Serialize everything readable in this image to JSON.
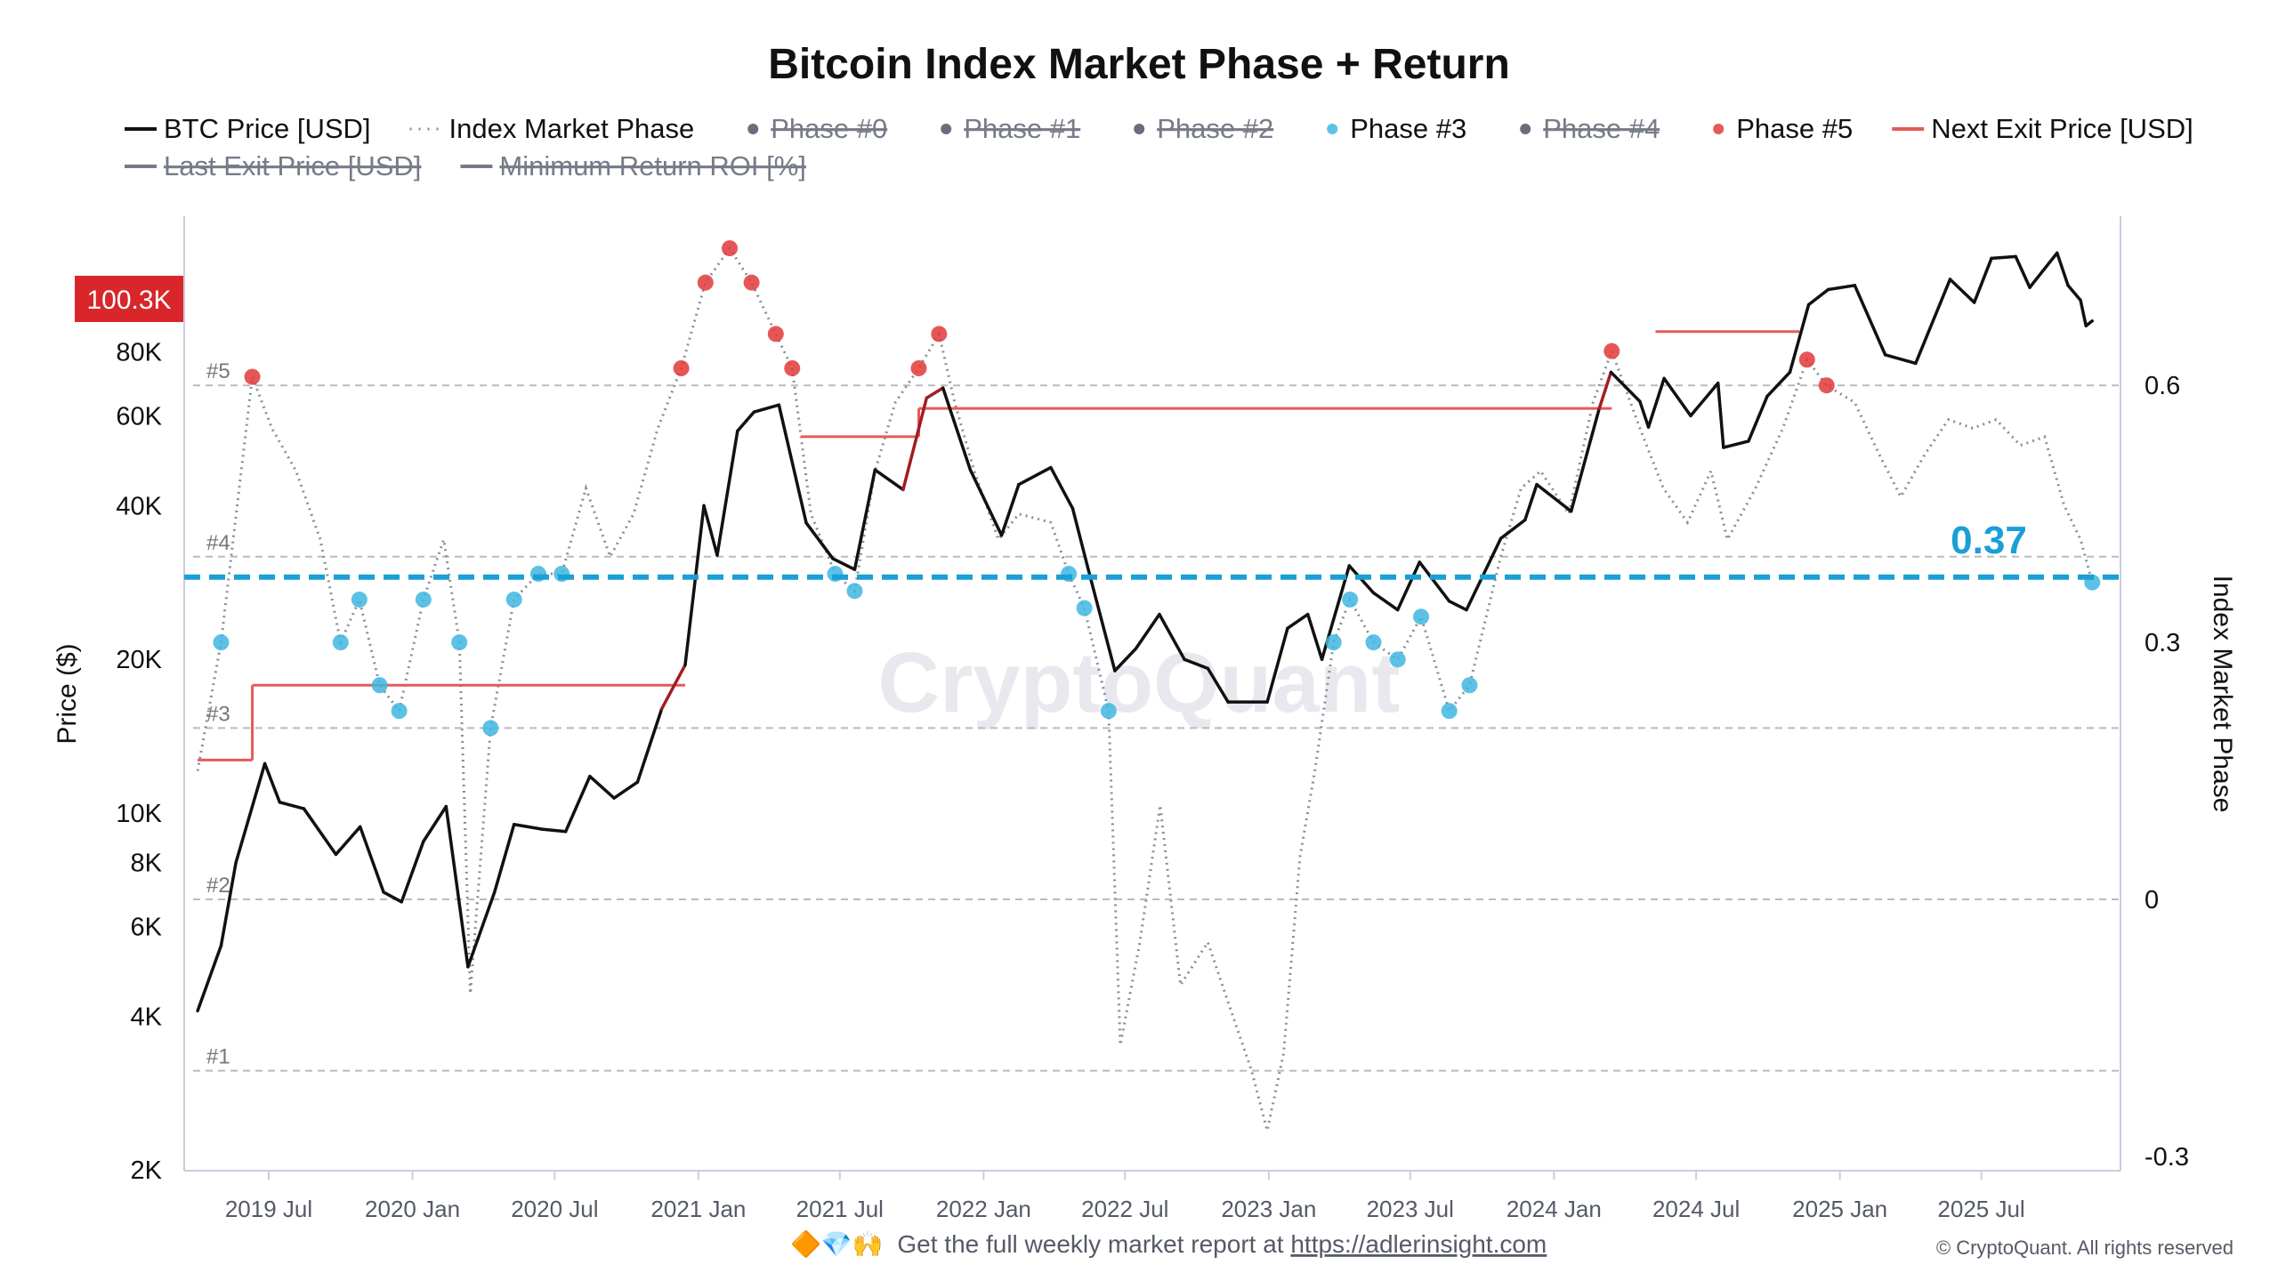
{
  "chart_data": {
    "type": "line",
    "title": "Bitcoin Index Market Phase + Return",
    "ylabel_left": "Price ($)",
    "ylabel_right": "Index Market Phase",
    "y_left_scale": "log",
    "y_left_range": [
      2000,
      147000
    ],
    "y_right_range": [
      -0.33,
      0.78
    ],
    "x_range": [
      "2019-04-01",
      "2025-11-20"
    ],
    "left_ticks": [
      {
        "v": 2000,
        "label": "2K"
      },
      {
        "v": 4000,
        "label": "4K"
      },
      {
        "v": 6000,
        "label": "6K"
      },
      {
        "v": 8000,
        "label": "8K"
      },
      {
        "v": 10000,
        "label": "10K"
      },
      {
        "v": 20000,
        "label": "20K"
      },
      {
        "v": 40000,
        "label": "40K"
      },
      {
        "v": 60000,
        "label": "60K"
      },
      {
        "v": 80000,
        "label": "80K"
      }
    ],
    "right_ticks": [
      {
        "v": 0.6,
        "label": "0.6"
      },
      {
        "v": 0.3,
        "label": "0.3"
      },
      {
        "v": 0,
        "label": "0"
      },
      {
        "v": -0.3,
        "label": "-0.3"
      }
    ],
    "x_ticks": [
      {
        "d": "2019-07-01",
        "label": "2019 Jul"
      },
      {
        "d": "2020-01-01",
        "label": "2020 Jan"
      },
      {
        "d": "2020-07-01",
        "label": "2020 Jul"
      },
      {
        "d": "2021-01-01",
        "label": "2021 Jan"
      },
      {
        "d": "2021-07-01",
        "label": "2021 Jul"
      },
      {
        "d": "2022-01-01",
        "label": "2022 Jan"
      },
      {
        "d": "2022-07-01",
        "label": "2022 Jul"
      },
      {
        "d": "2023-01-01",
        "label": "2023 Jan"
      },
      {
        "d": "2023-07-01",
        "label": "2023 Jul"
      },
      {
        "d": "2024-01-01",
        "label": "2024 Jan"
      },
      {
        "d": "2024-07-01",
        "label": "2024 Jul"
      },
      {
        "d": "2025-01-01",
        "label": "2025 Jan"
      },
      {
        "d": "2025-07-01",
        "label": "2025 Jul"
      }
    ],
    "phase_levels": [
      {
        "v": 0.6,
        "label": "#5"
      },
      {
        "v": 0.4,
        "label": "#4"
      },
      {
        "v": 0.2,
        "label": "#3"
      },
      {
        "v": 0,
        "label": "#2"
      },
      {
        "v": -0.2,
        "label": "#1"
      }
    ],
    "current_index": {
      "value": 0.37,
      "label": "0.37",
      "color": "#1a9fd6"
    },
    "price_tag": {
      "value": 100300,
      "label": "100.3K",
      "color": "#d8262b"
    },
    "legend": [
      {
        "name": "BTC Price [USD]",
        "style": "line",
        "color": "#111111",
        "visible": true
      },
      {
        "name": "Index Market Phase",
        "style": "dotted",
        "color": "#8a8d99",
        "visible": true
      },
      {
        "name": "Phase #0",
        "style": "dot",
        "color": "#6b6e7a",
        "visible": false
      },
      {
        "name": "Phase #1",
        "style": "dot",
        "color": "#6b6e7a",
        "visible": false
      },
      {
        "name": "Phase #2",
        "style": "dot",
        "color": "#6b6e7a",
        "visible": false
      },
      {
        "name": "Phase #3",
        "style": "dot",
        "color": "#5bc3e6",
        "visible": true
      },
      {
        "name": "Phase #4",
        "style": "dot",
        "color": "#6b6e7a",
        "visible": false
      },
      {
        "name": "Phase #5",
        "style": "dot",
        "color": "#e55a5a",
        "visible": true
      },
      {
        "name": "Next Exit Price [USD]",
        "style": "line",
        "color": "#e55a5a",
        "visible": true
      },
      {
        "name": "Last Exit Price [USD]",
        "style": "line",
        "color": "#777b88",
        "visible": false
      },
      {
        "name": "Minimum Return ROI [%]",
        "style": "line",
        "color": "#777b88",
        "visible": false
      }
    ],
    "series": [
      {
        "name": "BTC Price [USD]",
        "points": [
          [
            "2019-04-01",
            4100
          ],
          [
            "2019-05-01",
            5500
          ],
          [
            "2019-05-20",
            8000
          ],
          [
            "2019-06-26",
            12500
          ],
          [
            "2019-07-15",
            10500
          ],
          [
            "2019-08-15",
            10200
          ],
          [
            "2019-09-25",
            8300
          ],
          [
            "2019-10-26",
            9400
          ],
          [
            "2019-11-25",
            7000
          ],
          [
            "2019-12-18",
            6700
          ],
          [
            "2020-01-15",
            8800
          ],
          [
            "2020-02-13",
            10300
          ],
          [
            "2020-03-12",
            5000
          ],
          [
            "2020-04-15",
            7000
          ],
          [
            "2020-05-10",
            9500
          ],
          [
            "2020-06-15",
            9300
          ],
          [
            "2020-07-15",
            9200
          ],
          [
            "2020-08-15",
            11800
          ],
          [
            "2020-09-15",
            10700
          ],
          [
            "2020-10-15",
            11500
          ],
          [
            "2020-11-15",
            16000
          ],
          [
            "2020-12-15",
            19500
          ],
          [
            "2021-01-08",
            40000
          ],
          [
            "2021-01-25",
            32000
          ],
          [
            "2021-02-20",
            56000
          ],
          [
            "2021-03-13",
            61000
          ],
          [
            "2021-04-14",
            63000
          ],
          [
            "2021-05-19",
            37000
          ],
          [
            "2021-06-22",
            31500
          ],
          [
            "2021-07-20",
            30000
          ],
          [
            "2021-08-15",
            47000
          ],
          [
            "2021-09-20",
            43000
          ],
          [
            "2021-10-20",
            65000
          ],
          [
            "2021-11-10",
            68000
          ],
          [
            "2021-12-15",
            47000
          ],
          [
            "2022-01-24",
            35000
          ],
          [
            "2022-02-15",
            44000
          ],
          [
            "2022-03-28",
            47500
          ],
          [
            "2022-04-25",
            39500
          ],
          [
            "2022-05-15",
            30000
          ],
          [
            "2022-06-18",
            19000
          ],
          [
            "2022-07-15",
            21000
          ],
          [
            "2022-08-14",
            24500
          ],
          [
            "2022-09-15",
            20000
          ],
          [
            "2022-10-15",
            19200
          ],
          [
            "2022-11-10",
            16500
          ],
          [
            "2022-12-30",
            16500
          ],
          [
            "2023-01-25",
            23000
          ],
          [
            "2023-02-20",
            24500
          ],
          [
            "2023-03-10",
            20000
          ],
          [
            "2023-04-14",
            30500
          ],
          [
            "2023-05-15",
            27000
          ],
          [
            "2023-06-15",
            25000
          ],
          [
            "2023-07-13",
            31000
          ],
          [
            "2023-08-20",
            26000
          ],
          [
            "2023-09-11",
            25000
          ],
          [
            "2023-10-25",
            34500
          ],
          [
            "2023-11-25",
            37500
          ],
          [
            "2023-12-10",
            44000
          ],
          [
            "2024-01-23",
            39000
          ],
          [
            "2024-02-28",
            62000
          ],
          [
            "2024-03-14",
            73000
          ],
          [
            "2024-04-20",
            64000
          ],
          [
            "2024-05-01",
            57000
          ],
          [
            "2024-05-21",
            71000
          ],
          [
            "2024-06-24",
            60000
          ],
          [
            "2024-07-29",
            69500
          ],
          [
            "2024-08-05",
            52000
          ],
          [
            "2024-09-06",
            53500
          ],
          [
            "2024-09-30",
            65500
          ],
          [
            "2024-10-29",
            73000
          ],
          [
            "2024-11-22",
            99000
          ],
          [
            "2024-12-17",
            106000
          ],
          [
            "2025-01-20",
            108000
          ],
          [
            "2025-02-28",
            79000
          ],
          [
            "2025-04-08",
            76000
          ],
          [
            "2025-05-22",
            111000
          ],
          [
            "2025-06-22",
            100000
          ],
          [
            "2025-07-14",
            122000
          ],
          [
            "2025-08-14",
            123000
          ],
          [
            "2025-09-01",
            107000
          ],
          [
            "2025-10-06",
            125000
          ],
          [
            "2025-10-20",
            108000
          ],
          [
            "2025-11-05",
            101000
          ],
          [
            "2025-11-12",
            90000
          ],
          [
            "2025-11-20",
            92000
          ]
        ]
      },
      {
        "name": "Index Market Phase",
        "points": [
          [
            "2019-04-01",
            0.15
          ],
          [
            "2019-05-01",
            0.3
          ],
          [
            "2019-06-10",
            0.61
          ],
          [
            "2019-07-05",
            0.55
          ],
          [
            "2019-08-05",
            0.5
          ],
          [
            "2019-09-05",
            0.42
          ],
          [
            "2019-10-01",
            0.3
          ],
          [
            "2019-10-25",
            0.35
          ],
          [
            "2019-11-20",
            0.25
          ],
          [
            "2019-12-15",
            0.22
          ],
          [
            "2020-01-15",
            0.35
          ],
          [
            "2020-02-10",
            0.42
          ],
          [
            "2020-03-01",
            0.3
          ],
          [
            "2020-03-15",
            -0.11
          ],
          [
            "2020-04-10",
            0.2
          ],
          [
            "2020-05-10",
            0.35
          ],
          [
            "2020-06-10",
            0.38
          ],
          [
            "2020-07-10",
            0.38
          ],
          [
            "2020-08-10",
            0.48
          ],
          [
            "2020-09-10",
            0.4
          ],
          [
            "2020-10-10",
            0.45
          ],
          [
            "2020-11-10",
            0.55
          ],
          [
            "2020-12-10",
            0.62
          ],
          [
            "2021-01-10",
            0.72
          ],
          [
            "2021-02-10",
            0.76
          ],
          [
            "2021-03-10",
            0.72
          ],
          [
            "2021-04-10",
            0.66
          ],
          [
            "2021-05-01",
            0.62
          ],
          [
            "2021-05-25",
            0.45
          ],
          [
            "2021-06-25",
            0.38
          ],
          [
            "2021-07-20",
            0.36
          ],
          [
            "2021-08-15",
            0.5
          ],
          [
            "2021-09-10",
            0.58
          ],
          [
            "2021-10-10",
            0.62
          ],
          [
            "2021-11-05",
            0.66
          ],
          [
            "2021-11-25",
            0.58
          ],
          [
            "2021-12-20",
            0.5
          ],
          [
            "2022-01-20",
            0.42
          ],
          [
            "2022-02-15",
            0.45
          ],
          [
            "2022-03-28",
            0.44
          ],
          [
            "2022-04-20",
            0.38
          ],
          [
            "2022-05-10",
            0.34
          ],
          [
            "2022-06-10",
            0.22
          ],
          [
            "2022-06-25",
            -0.17
          ],
          [
            "2022-07-20",
            -0.05
          ],
          [
            "2022-08-15",
            0.11
          ],
          [
            "2022-09-10",
            -0.1
          ],
          [
            "2022-10-15",
            -0.05
          ],
          [
            "2022-11-10",
            -0.12
          ],
          [
            "2022-12-10",
            -0.2
          ],
          [
            "2022-12-30",
            -0.27
          ],
          [
            "2023-01-20",
            -0.18
          ],
          [
            "2023-02-10",
            0.05
          ],
          [
            "2023-03-01",
            0.15
          ],
          [
            "2023-03-25",
            0.3
          ],
          [
            "2023-04-15",
            0.35
          ],
          [
            "2023-05-15",
            0.3
          ],
          [
            "2023-06-15",
            0.28
          ],
          [
            "2023-07-15",
            0.33
          ],
          [
            "2023-08-20",
            0.22
          ],
          [
            "2023-09-15",
            0.25
          ],
          [
            "2023-10-25",
            0.4
          ],
          [
            "2023-11-20",
            0.48
          ],
          [
            "2023-12-15",
            0.5
          ],
          [
            "2024-01-20",
            0.45
          ],
          [
            "2024-02-20",
            0.58
          ],
          [
            "2024-03-15",
            0.64
          ],
          [
            "2024-04-20",
            0.55
          ],
          [
            "2024-05-20",
            0.48
          ],
          [
            "2024-06-20",
            0.44
          ],
          [
            "2024-07-20",
            0.5
          ],
          [
            "2024-08-10",
            0.42
          ],
          [
            "2024-09-15",
            0.48
          ],
          [
            "2024-10-20",
            0.55
          ],
          [
            "2024-11-20",
            0.63
          ],
          [
            "2024-12-15",
            0.6
          ],
          [
            "2025-01-20",
            0.58
          ],
          [
            "2025-02-20",
            0.52
          ],
          [
            "2025-03-20",
            0.47
          ],
          [
            "2025-04-20",
            0.52
          ],
          [
            "2025-05-20",
            0.56
          ],
          [
            "2025-06-20",
            0.55
          ],
          [
            "2025-07-20",
            0.56
          ],
          [
            "2025-08-20",
            0.53
          ],
          [
            "2025-09-20",
            0.54
          ],
          [
            "2025-10-15",
            0.46
          ],
          [
            "2025-11-05",
            0.42
          ],
          [
            "2025-11-20",
            0.37
          ]
        ]
      }
    ],
    "next_exit_price_steps": [
      {
        "start": "2019-04-01",
        "end": "2019-06-10",
        "price": 12700
      },
      {
        "start": "2019-06-10",
        "end": "2020-12-15",
        "price": 17800
      },
      {
        "start": "2021-05-12",
        "end": "2021-10-10",
        "price": 54600
      },
      {
        "start": "2021-10-10",
        "end": "2024-03-15",
        "price": 62000
      },
      {
        "start": "2024-05-10",
        "end": "2024-11-10",
        "price": 87700
      }
    ]
  },
  "watermark": "CryptoQuant",
  "footer": {
    "emojis": "🔶💎🙌",
    "text": "Get the full weekly market report at ",
    "link": "https://adlerinsight.com",
    "copyright": "© CryptoQuant. All rights reserved"
  }
}
